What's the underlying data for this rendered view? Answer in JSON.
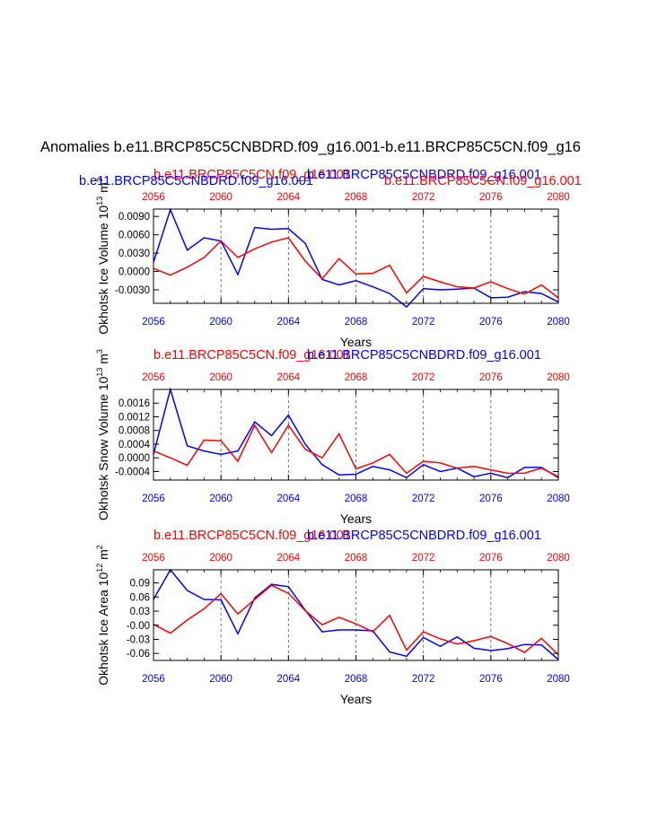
{
  "title": "Anomalies b.e11.BRCP85C5CNBDRD.f09_g16.001-b.e11.BRCP85C5CN.f09_g16",
  "colors": {
    "blue": "#0000ff",
    "red": "#ff0000",
    "axis": "#000000",
    "grid": "#555555"
  },
  "chart_data": [
    {
      "type": "line",
      "ylabel": "Okhotsk Ice Volume 10",
      "ylabel_exp": "13",
      "ylabel_unit": "m",
      "ylabel_unit_exp": "3",
      "xlabel": "Years",
      "top_left_label": "b.e11.BRCP85C5CNBDRD.f09_g16.001",
      "top_left_label_color": "#0000ff",
      "top_mid_label": "b.e11.BRCP85C5CN.f09_g16.001",
      "top_mid_label_color": "#ff0000",
      "top_overlap_label": "b.e11.BRCP85C5CNBDRD.f09_g16.001",
      "top_overlap_label_color": "#0000ff",
      "top_right_label": "b.e11.BRCP85C5CN.f09_g16.001",
      "top_right_label_color": "#ff0000",
      "x_ticks": [
        "2056",
        "2060",
        "2064",
        "2068",
        "2072",
        "2076",
        "2080"
      ],
      "xlim": [
        2056,
        2080
      ],
      "ylim": [
        -0.0052,
        0.0102
      ],
      "y_ticks": [
        "0.0090",
        "0.0060",
        "0.0030",
        "0.0000",
        "-0.0030"
      ],
      "y_tick_values": [
        0.009,
        0.006,
        0.003,
        0.0,
        -0.003
      ],
      "x": [
        2056,
        2057,
        2058,
        2059,
        2060,
        2061,
        2062,
        2063,
        2064,
        2065,
        2066,
        2067,
        2068,
        2069,
        2070,
        2071,
        2072,
        2073,
        2074,
        2075,
        2076,
        2077,
        2078,
        2079,
        2080
      ],
      "series": [
        {
          "name": "b.e11.BRCP85C5CNBDRD.f09_g16.001",
          "color": "#0000ff",
          "values": [
            0.0015,
            0.0101,
            0.0035,
            0.0055,
            0.005,
            -0.0005,
            0.0072,
            0.0069,
            0.007,
            0.0046,
            -0.0013,
            -0.0022,
            -0.0015,
            -0.0025,
            -0.0036,
            -0.0058,
            -0.0028,
            -0.003,
            -0.0029,
            -0.0027,
            -0.0043,
            -0.0042,
            -0.0033,
            -0.0036,
            -0.005
          ]
        },
        {
          "name": "b.e11.BRCP85C5CN.f09_g16.001",
          "color": "#ff0000",
          "values": [
            0.0005,
            -0.0006,
            0.0007,
            0.0023,
            0.005,
            0.0023,
            0.0037,
            0.0048,
            0.0055,
            0.0017,
            -0.0012,
            0.0021,
            -0.0004,
            -0.0003,
            0.001,
            -0.0035,
            -0.0008,
            -0.0017,
            -0.0025,
            -0.0027,
            -0.0017,
            -0.0028,
            -0.0037,
            -0.0022,
            -0.0043
          ]
        }
      ]
    },
    {
      "type": "line",
      "ylabel": "Okhotsk Snow Volume 10",
      "ylabel_exp": "13",
      "ylabel_unit": "m",
      "ylabel_unit_exp": "3",
      "xlabel": "Years",
      "top_left_label": "",
      "top_left_label_color": "#0000ff",
      "top_mid_label": "b.e11.BRCP85C5CN.f09_g16.001",
      "top_mid_label_color": "#ff0000",
      "top_overlap_label": "b.e11.BRCP85C5CNBDRD.f09_g16.001",
      "top_overlap_label_color": "#0000ff",
      "top_right_label": "",
      "top_right_label_color": "#ff0000",
      "x_ticks": [
        "2056",
        "2060",
        "2064",
        "2068",
        "2072",
        "2076",
        "2080"
      ],
      "xlim": [
        2056,
        2080
      ],
      "ylim": [
        -0.00065,
        0.002
      ],
      "y_ticks": [
        "0.0016",
        "0.0012",
        "0.0008",
        "0.0004",
        "0.0000",
        "-0.0004"
      ],
      "y_tick_values": [
        0.0016,
        0.0012,
        0.0008,
        0.0004,
        0.0,
        -0.0004
      ],
      "x": [
        2056,
        2057,
        2058,
        2059,
        2060,
        2061,
        2062,
        2063,
        2064,
        2065,
        2066,
        2067,
        2068,
        2069,
        2070,
        2071,
        2072,
        2073,
        2074,
        2075,
        2076,
        2077,
        2078,
        2079,
        2080
      ],
      "series": [
        {
          "name": "b.e11.BRCP85C5CNBDRD.f09_g16.001",
          "color": "#0000ff",
          "values": [
            0.0001,
            0.002,
            0.00035,
            0.0002,
            0.0001,
            0.0002,
            0.00105,
            0.00065,
            0.00125,
            0.0004,
            -0.0002,
            -0.0005,
            -0.00048,
            -0.00025,
            -0.00035,
            -0.00058,
            -0.0002,
            -0.0004,
            -0.0003,
            -0.00055,
            -0.00045,
            -0.00058,
            -0.00028,
            -0.00028,
            -0.00058
          ]
        },
        {
          "name": "b.e11.BRCP85C5CN.f09_g16.001",
          "color": "#ff0000",
          "values": [
            0.0002,
            0.0,
            -0.00022,
            0.00052,
            0.0005,
            -0.0001,
            0.00095,
            0.00015,
            0.00095,
            0.00025,
            0.0,
            0.0007,
            -0.00032,
            -0.00015,
            0.0001,
            -0.00045,
            -0.0001,
            -0.00015,
            -0.0003,
            -0.00025,
            -0.00035,
            -0.00045,
            -0.00045,
            -0.0003,
            -0.00055
          ]
        }
      ]
    },
    {
      "type": "line",
      "ylabel": "Okhotsk Ice Area 10",
      "ylabel_exp": "12",
      "ylabel_unit": "m",
      "ylabel_unit_exp": "2",
      "xlabel": "Years",
      "top_left_label": "",
      "top_left_label_color": "#0000ff",
      "top_mid_label": "b.e11.BRCP85C5CN.f09_g16.001",
      "top_mid_label_color": "#ff0000",
      "top_overlap_label": "b.e11.BRCP85C5CNBDRD.f09_g16.001",
      "top_overlap_label_color": "#0000ff",
      "top_right_label": "",
      "top_right_label_color": "#ff0000",
      "x_ticks": [
        "2056",
        "2060",
        "2064",
        "2068",
        "2072",
        "2076",
        "2080"
      ],
      "xlim": [
        2056,
        2080
      ],
      "ylim": [
        -0.075,
        0.118
      ],
      "y_ticks": [
        "0.09",
        "0.06",
        "0.03",
        "-0.00",
        "-0.03",
        "-0.06"
      ],
      "y_tick_values": [
        0.09,
        0.06,
        0.03,
        0.0,
        -0.03,
        -0.06
      ],
      "x": [
        2056,
        2057,
        2058,
        2059,
        2060,
        2061,
        2062,
        2063,
        2064,
        2065,
        2066,
        2067,
        2068,
        2069,
        2070,
        2071,
        2072,
        2073,
        2074,
        2075,
        2076,
        2077,
        2078,
        2079,
        2080
      ],
      "series": [
        {
          "name": "b.e11.BRCP85C5CNBDRD.f09_g16.001",
          "color": "#0000ff",
          "values": [
            0.055,
            0.118,
            0.074,
            0.055,
            0.054,
            -0.018,
            0.058,
            0.087,
            0.082,
            0.032,
            -0.014,
            -0.01,
            -0.01,
            -0.012,
            -0.057,
            -0.066,
            -0.026,
            -0.045,
            -0.025,
            -0.049,
            -0.054,
            -0.05,
            -0.041,
            -0.042,
            -0.073
          ]
        },
        {
          "name": "b.e11.BRCP85C5CN.f09_g16.001",
          "color": "#ff0000",
          "values": [
            0.002,
            -0.017,
            0.011,
            0.035,
            0.067,
            0.024,
            0.055,
            0.085,
            0.068,
            0.031,
            0.001,
            0.017,
            0.003,
            -0.014,
            0.021,
            -0.053,
            -0.014,
            -0.029,
            -0.04,
            -0.033,
            -0.024,
            -0.039,
            -0.058,
            -0.028,
            -0.063
          ]
        }
      ]
    }
  ]
}
